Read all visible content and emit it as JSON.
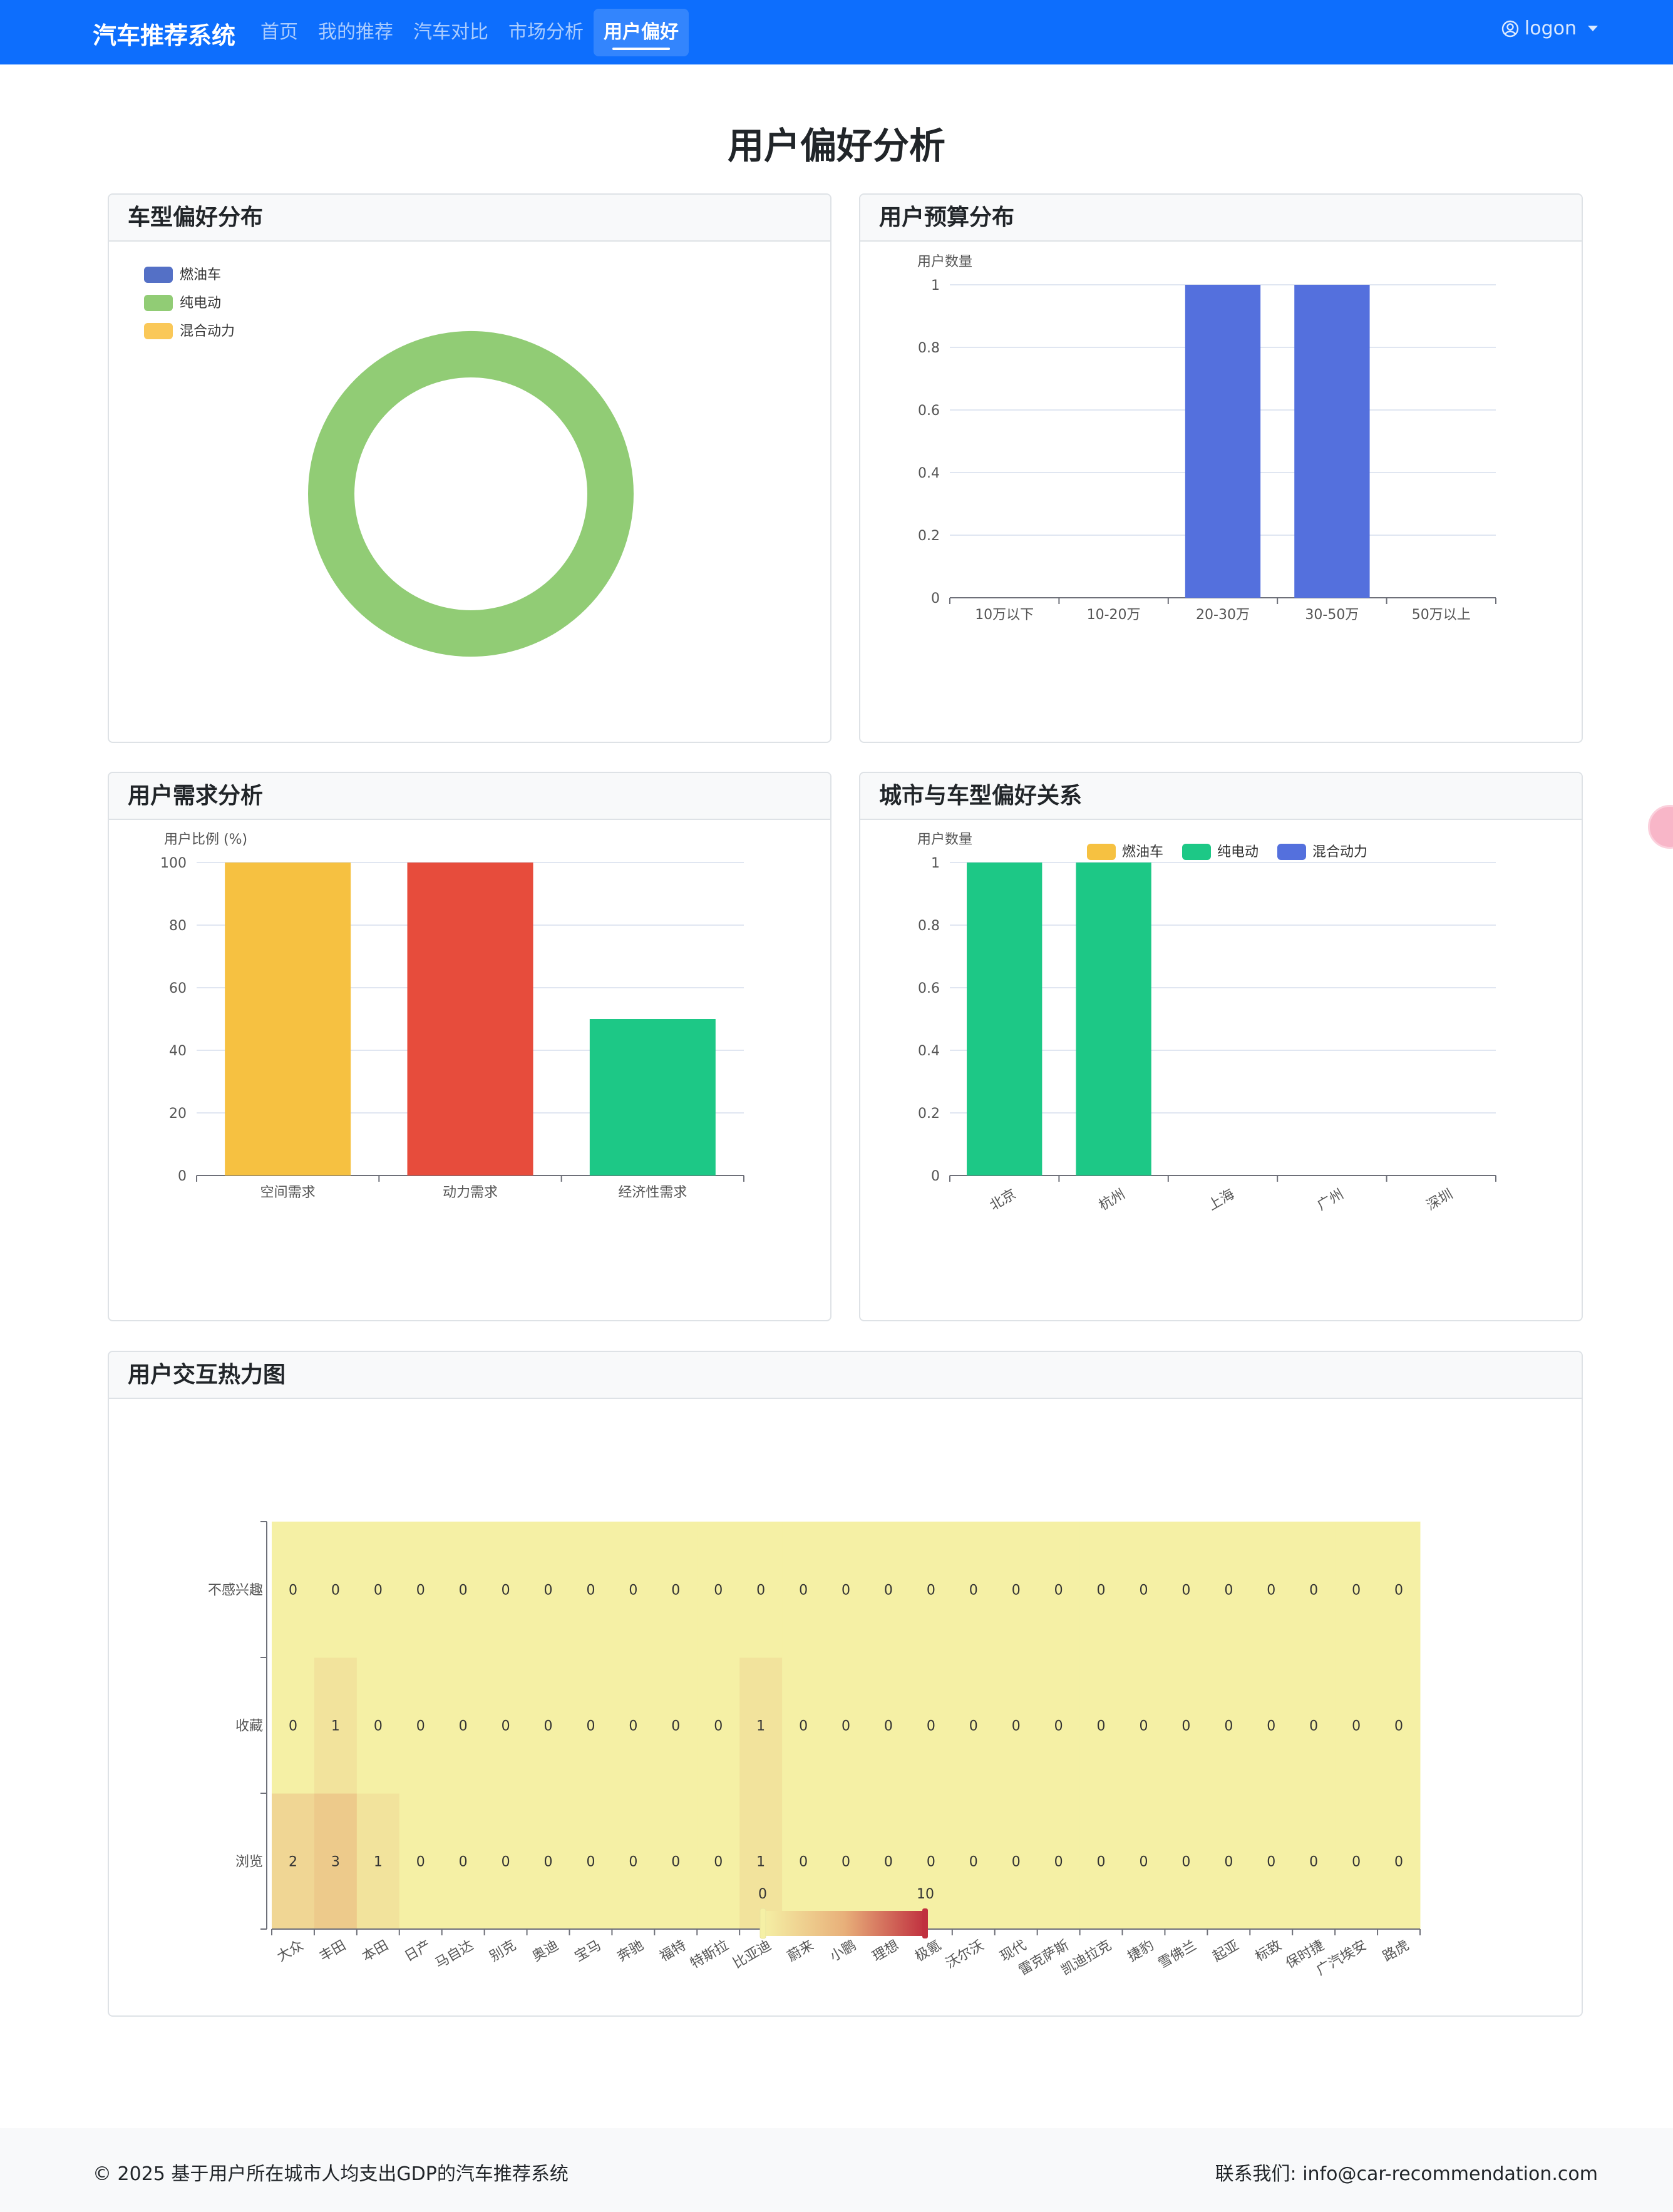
{
  "nav": {
    "brand": "汽车推荐系统",
    "items": [
      {
        "label": "首页",
        "active": false
      },
      {
        "label": "我的推荐",
        "active": false
      },
      {
        "label": "汽车对比",
        "active": false
      },
      {
        "label": "市场分析",
        "active": false
      },
      {
        "label": "用户偏好",
        "active": true
      }
    ],
    "user": "logon"
  },
  "page_title": "用户偏好分析",
  "cards": {
    "car_type": {
      "title": "车型偏好分布"
    },
    "budget": {
      "title": "用户预算分布"
    },
    "needs": {
      "title": "用户需求分析"
    },
    "city": {
      "title": "城市与车型偏好关系"
    },
    "heatmap": {
      "title": "用户交互热力图"
    }
  },
  "chart_data": [
    {
      "id": "car_type",
      "type": "pie",
      "donut": true,
      "legend_position": "top-left",
      "slices": [
        {
          "name": "燃油车",
          "value": 0,
          "color": "#5470c6"
        },
        {
          "name": "纯电动",
          "value": 1,
          "color": "#91cc75"
        },
        {
          "name": "混合动力",
          "value": 0,
          "color": "#fac858"
        }
      ]
    },
    {
      "id": "budget",
      "type": "bar",
      "ylabel": "用户数量",
      "categories": [
        "10万以下",
        "10-20万",
        "20-30万",
        "30-50万",
        "50万以上"
      ],
      "values": [
        0,
        0,
        1,
        1,
        0
      ],
      "ylim": [
        0,
        1
      ],
      "yticks": [
        "0",
        "0.2",
        "0.4",
        "0.6",
        "0.8",
        "1"
      ],
      "color": "#5470dd",
      "grid": true
    },
    {
      "id": "needs",
      "type": "bar",
      "ylabel": "用户比例 (%)",
      "categories": [
        "空间需求",
        "动力需求",
        "经济性需求"
      ],
      "values": [
        100,
        100,
        50
      ],
      "colors": [
        "#f6c141",
        "#e74c3c",
        "#1dc886"
      ],
      "ylim": [
        0,
        100
      ],
      "yticks": [
        "0",
        "20",
        "40",
        "60",
        "80",
        "100"
      ],
      "grid": true
    },
    {
      "id": "city",
      "type": "bar",
      "ylabel": "用户数量",
      "legend_position": "top",
      "categories": [
        "北京",
        "杭州",
        "上海",
        "广州",
        "深圳"
      ],
      "series": [
        {
          "name": "燃油车",
          "values": [
            0,
            0,
            0,
            0,
            0
          ],
          "color": "#f6c141"
        },
        {
          "name": "纯电动",
          "values": [
            1,
            1,
            0,
            0,
            0
          ],
          "color": "#1dc886"
        },
        {
          "name": "混合动力",
          "values": [
            0,
            0,
            0,
            0,
            0
          ],
          "color": "#5470dd"
        }
      ],
      "ylim": [
        0,
        1
      ],
      "yticks": [
        "0",
        "0.2",
        "0.4",
        "0.6",
        "0.8",
        "1"
      ],
      "grid": true
    },
    {
      "id": "heatmap",
      "type": "heatmap",
      "x": [
        "大众",
        "丰田",
        "本田",
        "日产",
        "马自达",
        "别克",
        "奥迪",
        "宝马",
        "奔驰",
        "福特",
        "特斯拉",
        "比亚迪",
        "蔚来",
        "小鹏",
        "理想",
        "极氪",
        "沃尔沃",
        "现代",
        "雷克萨斯",
        "凯迪拉克",
        "捷豹",
        "雪佛兰",
        "起亚",
        "标致",
        "保时捷",
        "广汽埃安",
        "路虎"
      ],
      "y": [
        "浏览",
        "收藏",
        "不感兴趣"
      ],
      "values": [
        [
          2,
          3,
          1,
          0,
          0,
          0,
          0,
          0,
          0,
          0,
          0,
          1,
          0,
          0,
          0,
          0,
          0,
          0,
          0,
          0,
          0,
          0,
          0,
          0,
          0,
          0,
          0
        ],
        [
          0,
          1,
          0,
          0,
          0,
          0,
          0,
          0,
          0,
          0,
          0,
          1,
          0,
          0,
          0,
          0,
          0,
          0,
          0,
          0,
          0,
          0,
          0,
          0,
          0,
          0,
          0
        ],
        [
          0,
          0,
          0,
          0,
          0,
          0,
          0,
          0,
          0,
          0,
          0,
          0,
          0,
          0,
          0,
          0,
          0,
          0,
          0,
          0,
          0,
          0,
          0,
          0,
          0,
          0,
          0
        ]
      ],
      "visual_map": {
        "min": 0,
        "max": 10,
        "min_label": "0",
        "max_label": "10",
        "colors": [
          "#f5f0a5",
          "#e8b07a",
          "#c0303f"
        ]
      }
    }
  ],
  "footer": {
    "copyright": "© 2025 基于用户所在城市人均支出GDP的汽车推荐系统",
    "contact": "联系我们: info@car-recommendation.com"
  }
}
